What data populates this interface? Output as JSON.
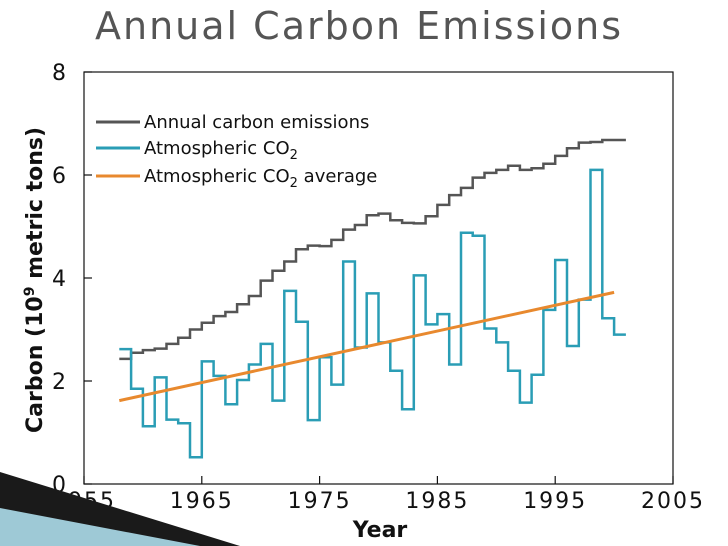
{
  "slide": {
    "title": "Annual Carbon Emissions"
  },
  "chart_data": {
    "type": "line",
    "title": "Annual Carbon Emissions",
    "xlabel": "Year",
    "ylabel_parts": {
      "prefix": "Carbon (10",
      "sup": "9",
      "suffix": " metric tons)"
    },
    "xlim": [
      1955,
      2005
    ],
    "ylim": [
      0,
      8
    ],
    "xticks": [
      1955,
      1965,
      1975,
      1985,
      1995,
      2005
    ],
    "yticks": [
      0,
      2,
      4,
      6,
      8
    ],
    "grid": false,
    "legend_position": "top-left",
    "series": [
      {
        "name": "Annual carbon emissions",
        "legend": {
          "text": "Annual carbon emissions",
          "sub": "",
          "after": ""
        },
        "color": "#555555",
        "style": "step",
        "x": [
          1958,
          1959,
          1960,
          1961,
          1962,
          1963,
          1964,
          1965,
          1966,
          1967,
          1968,
          1969,
          1970,
          1971,
          1972,
          1973,
          1974,
          1975,
          1976,
          1977,
          1978,
          1979,
          1980,
          1981,
          1982,
          1983,
          1984,
          1985,
          1986,
          1987,
          1988,
          1989,
          1990,
          1991,
          1992,
          1993,
          1994,
          1995,
          1996,
          1997,
          1998,
          1999,
          2000
        ],
        "values": [
          2.43,
          2.55,
          2.6,
          2.63,
          2.72,
          2.84,
          3.0,
          3.13,
          3.26,
          3.34,
          3.49,
          3.65,
          3.95,
          4.14,
          4.32,
          4.56,
          4.63,
          4.62,
          4.74,
          4.94,
          5.03,
          5.22,
          5.25,
          5.12,
          5.07,
          5.06,
          5.2,
          5.42,
          5.61,
          5.75,
          5.95,
          6.04,
          6.1,
          6.18,
          6.1,
          6.13,
          6.22,
          6.37,
          6.52,
          6.63,
          6.64,
          6.68,
          6.68
        ]
      },
      {
        "name": "Atmospheric CO2",
        "legend": {
          "text": "Atmospheric CO",
          "sub": "2",
          "after": ""
        },
        "color": "#2a9db5",
        "style": "step",
        "x": [
          1958,
          1959,
          1960,
          1961,
          1962,
          1963,
          1964,
          1965,
          1966,
          1967,
          1968,
          1969,
          1970,
          1971,
          1972,
          1973,
          1974,
          1975,
          1976,
          1977,
          1978,
          1979,
          1980,
          1981,
          1982,
          1983,
          1984,
          1985,
          1986,
          1987,
          1988,
          1989,
          1990,
          1991,
          1992,
          1993,
          1994,
          1995,
          1996,
          1997,
          1998,
          1999,
          2000
        ],
        "values": [
          2.62,
          1.85,
          1.12,
          2.07,
          1.25,
          1.18,
          0.52,
          2.38,
          2.1,
          1.55,
          2.02,
          2.32,
          2.72,
          1.62,
          3.75,
          3.15,
          1.24,
          2.46,
          1.93,
          4.32,
          2.65,
          3.7,
          2.75,
          2.2,
          1.45,
          4.05,
          3.1,
          3.3,
          2.32,
          4.88,
          4.82,
          3.02,
          2.75,
          2.2,
          1.58,
          2.12,
          3.38,
          4.35,
          2.68,
          3.58,
          6.1,
          3.22,
          2.9
        ]
      },
      {
        "name": "Atmospheric CO2 average",
        "legend": {
          "text": "Atmospheric CO",
          "sub": "2",
          "after": " average"
        },
        "color": "#e8892e",
        "style": "line",
        "x": [
          1958,
          2000
        ],
        "values": [
          1.62,
          3.72
        ]
      }
    ]
  }
}
